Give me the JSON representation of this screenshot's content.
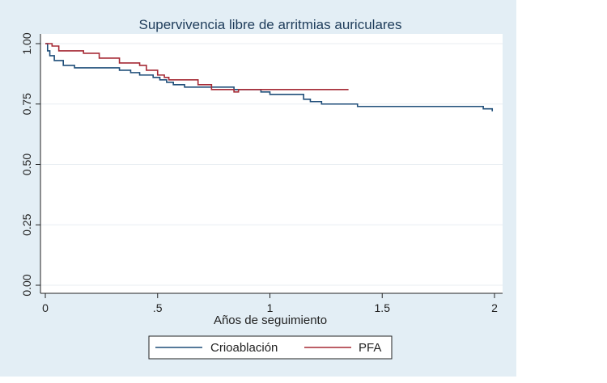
{
  "chart_data": {
    "type": "line",
    "step": true,
    "title": "Supervivencia libre de arritmias auriculares",
    "xlabel": "Años de seguimiento",
    "ylabel": "",
    "xlim": [
      0,
      2
    ],
    "ylim": [
      0,
      1
    ],
    "xticks": [
      {
        "value": 0,
        "label": "0"
      },
      {
        "value": 0.5,
        "label": ".5"
      },
      {
        "value": 1,
        "label": "1"
      },
      {
        "value": 1.5,
        "label": "1.5"
      },
      {
        "value": 2,
        "label": "2"
      }
    ],
    "yticks": [
      {
        "value": 0,
        "label": "0.00"
      },
      {
        "value": 0.25,
        "label": "0.25"
      },
      {
        "value": 0.5,
        "label": "0.50"
      },
      {
        "value": 0.75,
        "label": "0.75"
      },
      {
        "value": 1,
        "label": "1.00"
      }
    ],
    "grid": true,
    "legend_position": "bottom",
    "series": [
      {
        "name": "Crioablación",
        "color": "#1f4e79",
        "points": [
          [
            0,
            1.0
          ],
          [
            0.01,
            0.97
          ],
          [
            0.02,
            0.95
          ],
          [
            0.04,
            0.93
          ],
          [
            0.08,
            0.91
          ],
          [
            0.13,
            0.9
          ],
          [
            0.33,
            0.89
          ],
          [
            0.38,
            0.88
          ],
          [
            0.42,
            0.87
          ],
          [
            0.48,
            0.86
          ],
          [
            0.51,
            0.85
          ],
          [
            0.54,
            0.84
          ],
          [
            0.57,
            0.83
          ],
          [
            0.62,
            0.82
          ],
          [
            0.84,
            0.81
          ],
          [
            0.96,
            0.8
          ],
          [
            1.0,
            0.79
          ],
          [
            1.15,
            0.77
          ],
          [
            1.18,
            0.76
          ],
          [
            1.23,
            0.75
          ],
          [
            1.39,
            0.74
          ],
          [
            1.95,
            0.73
          ],
          [
            1.99,
            0.72
          ]
        ]
      },
      {
        "name": "PFA",
        "color": "#a52a35",
        "points": [
          [
            0,
            1.0
          ],
          [
            0.03,
            0.99
          ],
          [
            0.06,
            0.97
          ],
          [
            0.17,
            0.96
          ],
          [
            0.24,
            0.94
          ],
          [
            0.33,
            0.92
          ],
          [
            0.42,
            0.91
          ],
          [
            0.45,
            0.89
          ],
          [
            0.5,
            0.87
          ],
          [
            0.53,
            0.86
          ],
          [
            0.55,
            0.85
          ],
          [
            0.68,
            0.83
          ],
          [
            0.74,
            0.81
          ],
          [
            0.84,
            0.8
          ],
          [
            0.86,
            0.81
          ],
          [
            1.35,
            0.81
          ]
        ]
      }
    ]
  }
}
